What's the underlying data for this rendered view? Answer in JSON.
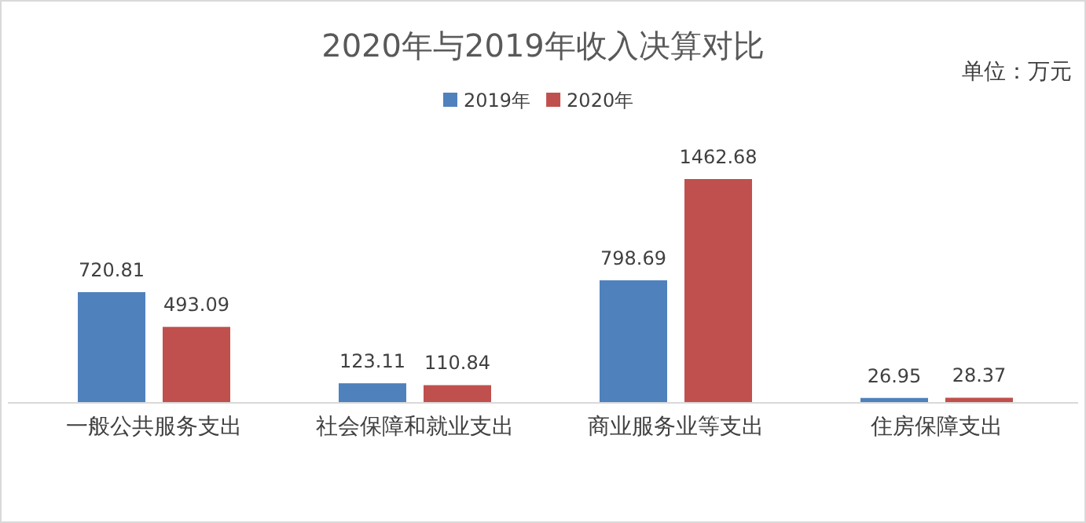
{
  "chart_data": {
    "type": "bar",
    "title": "2020年与2019年收入决算对比",
    "annotations": [
      "单位：万元"
    ],
    "categories": [
      "一般公共服务支出",
      "社会保障和就业支出",
      "商业服务业等支出",
      "住房保障支出"
    ],
    "series": [
      {
        "name": "2019年",
        "color": "#4f81bd",
        "values": [
          720.81,
          123.11,
          798.69,
          26.95
        ]
      },
      {
        "name": "2020年",
        "color": "#c0504d",
        "values": [
          493.09,
          110.84,
          1462.68,
          28.37
        ]
      }
    ],
    "data_labels": true,
    "legend": "top"
  }
}
